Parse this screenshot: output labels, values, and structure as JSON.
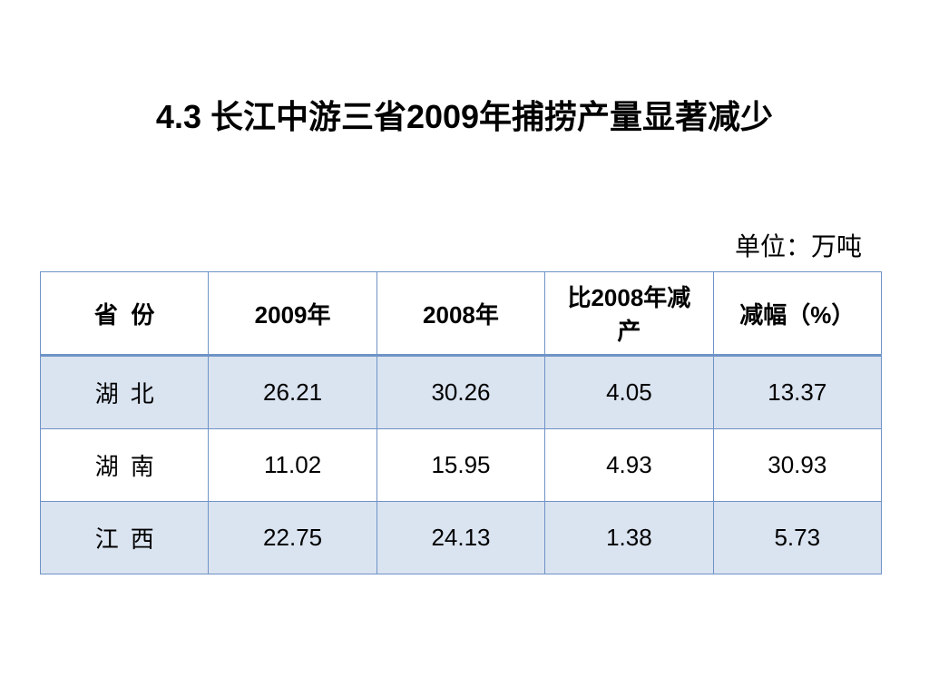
{
  "header": {
    "title": "4.3 长江中游三省2009年捕捞产量显著减少",
    "unit": "单位：万吨"
  },
  "table": {
    "columns": [
      "省  份",
      "2009年",
      "2008年",
      "比2008年减产",
      "减幅（%）"
    ],
    "rows": [
      [
        "湖  北",
        "26.21",
        "30.26",
        "4.05",
        "13.37"
      ],
      [
        "湖  南",
        "11.02",
        "15.95",
        "4.93",
        "30.93"
      ],
      [
        "江  西",
        "22.75",
        "24.13",
        "1.38",
        "5.73"
      ]
    ]
  }
}
